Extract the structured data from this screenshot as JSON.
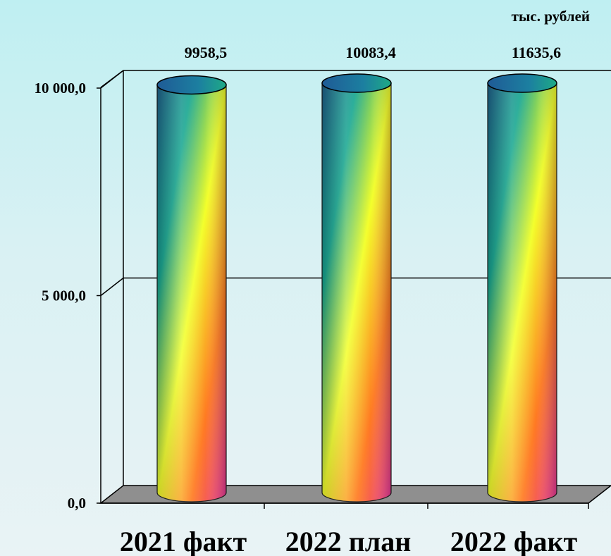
{
  "chart_data": {
    "type": "bar",
    "unit": "тыс. рублей",
    "categories": [
      "2021 факт",
      "2022 план",
      "2022 факт"
    ],
    "values": [
      9958.5,
      10083.4,
      11635.6
    ],
    "data_labels": [
      "9958,5",
      "10083,4",
      "11635,6"
    ],
    "yticks": [
      {
        "value": 0,
        "label": "0,0"
      },
      {
        "value": 5000,
        "label": "5 000,0"
      },
      {
        "value": 10000,
        "label": "10 000,0"
      }
    ],
    "ylim": [
      0,
      10000
    ],
    "grid": true,
    "bar_style": "3d-cylinder-rainbow-gradient",
    "colors": {
      "floor": "#8f8f8f",
      "gradient": [
        "#1d5f8a",
        "#14a58f",
        "#f3ff2a",
        "#ff7a22",
        "#e8359b"
      ]
    }
  }
}
